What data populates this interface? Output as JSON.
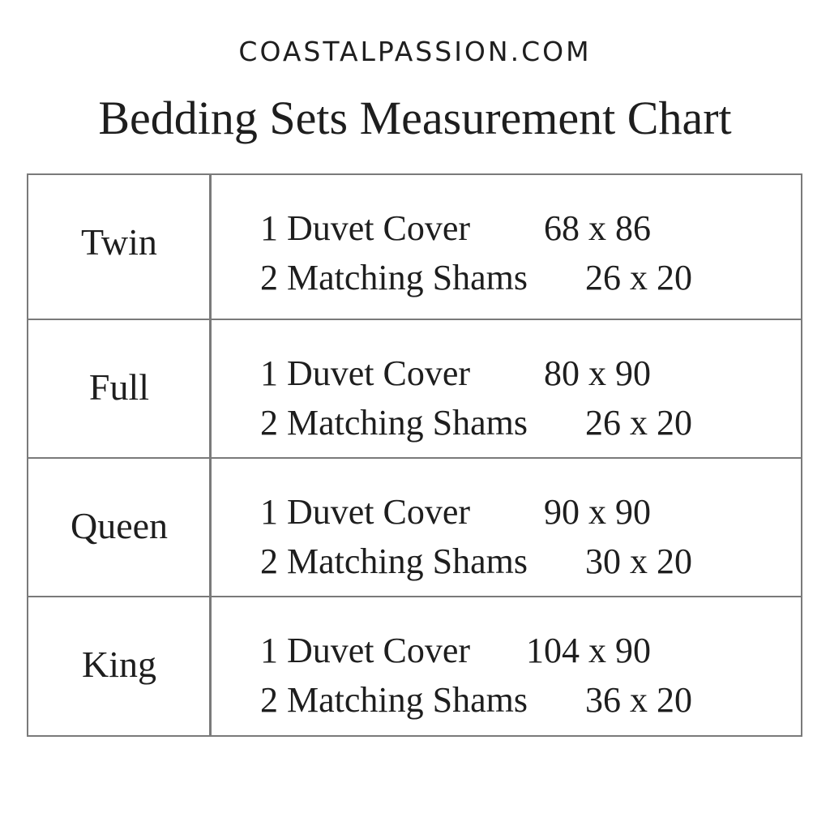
{
  "brand": "COASTALPASSION.COM",
  "title": "Bedding Sets Measurement Chart",
  "rows": [
    {
      "size": "Twin",
      "item1": "1 Duvet Cover",
      "dim1": "68 x 86",
      "item2": "2 Matching Shams",
      "dim2": "26 x 20"
    },
    {
      "size": "Full",
      "item1": "1 Duvet Cover",
      "dim1": "80 x 90",
      "item2": "2 Matching Shams",
      "dim2": "26 x 20"
    },
    {
      "size": "Queen",
      "item1": "1 Duvet Cover",
      "dim1": "90 x 90",
      "item2": "2 Matching Shams",
      "dim2": "30 x 20"
    },
    {
      "size": "King",
      "item1": "1 Duvet Cover",
      "dim1": "104 x 90",
      "item2": "2 Matching Shams",
      "dim2": "36 x 20"
    }
  ]
}
